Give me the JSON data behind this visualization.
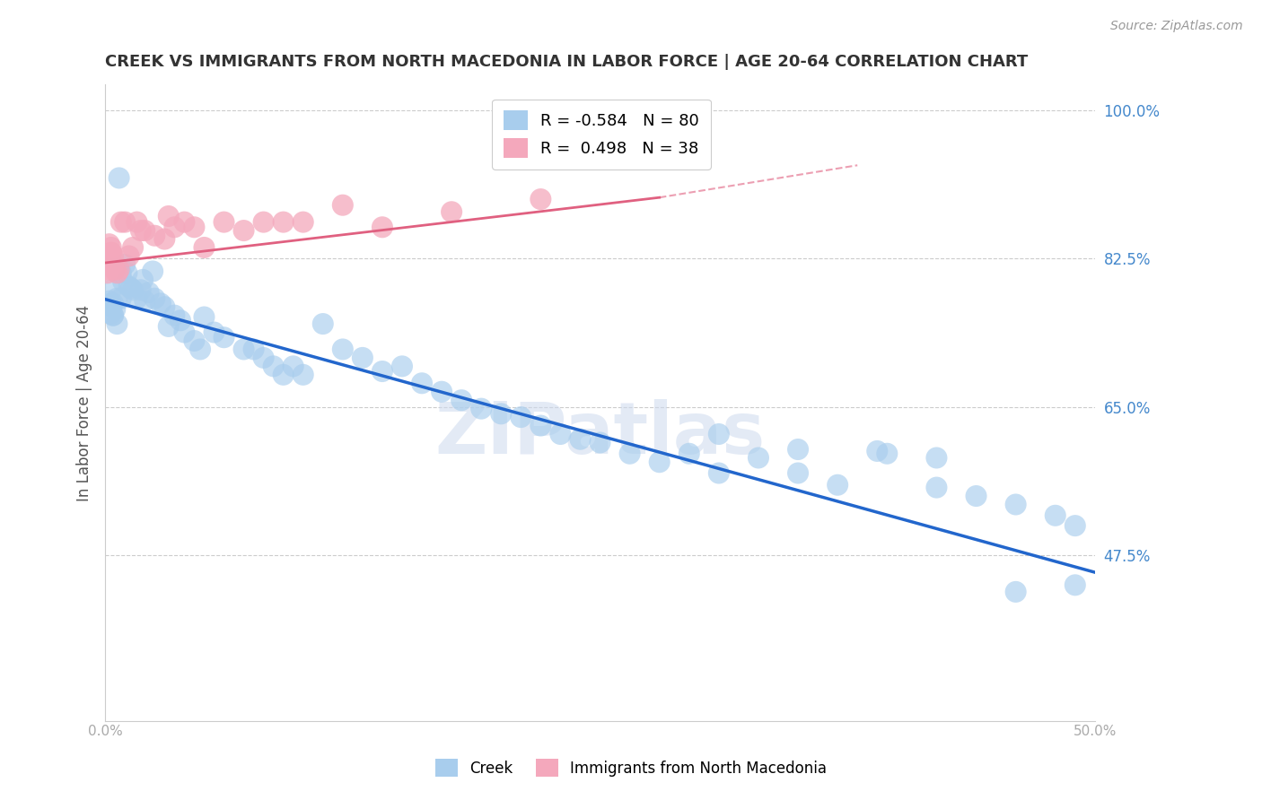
{
  "title": "CREEK VS IMMIGRANTS FROM NORTH MACEDONIA IN LABOR FORCE | AGE 20-64 CORRELATION CHART",
  "source": "Source: ZipAtlas.com",
  "ylabel": "In Labor Force | Age 20-64",
  "xmin": 0.0,
  "xmax": 0.5,
  "ymin": 0.28,
  "ymax": 1.03,
  "yticks": [
    0.475,
    0.65,
    0.825,
    1.0
  ],
  "ytick_labels": [
    "47.5%",
    "65.0%",
    "82.5%",
    "100.0%"
  ],
  "blue_color": "#A8CDED",
  "pink_color": "#F4A8BC",
  "blue_line_color": "#2266CC",
  "pink_line_color": "#E06080",
  "legend_R_blue": "-0.584",
  "legend_N_blue": "80",
  "legend_R_pink": "0.498",
  "legend_N_pink": "38",
  "legend_label_blue": "Creek",
  "legend_label_pink": "Immigrants from North Macedonia",
  "watermark": "ZIPatlas",
  "blue_x": [
    0.002,
    0.003,
    0.004,
    0.002,
    0.003,
    0.005,
    0.004,
    0.003,
    0.006,
    0.004,
    0.003,
    0.007,
    0.006,
    0.008,
    0.009,
    0.01,
    0.012,
    0.008,
    0.011,
    0.014,
    0.016,
    0.018,
    0.013,
    0.02,
    0.022,
    0.019,
    0.025,
    0.024,
    0.03,
    0.028,
    0.035,
    0.032,
    0.038,
    0.04,
    0.045,
    0.048,
    0.05,
    0.055,
    0.06,
    0.07,
    0.075,
    0.08,
    0.085,
    0.09,
    0.095,
    0.1,
    0.11,
    0.12,
    0.13,
    0.14,
    0.15,
    0.16,
    0.17,
    0.18,
    0.19,
    0.2,
    0.21,
    0.22,
    0.23,
    0.24,
    0.25,
    0.265,
    0.28,
    0.295,
    0.31,
    0.33,
    0.35,
    0.37,
    0.395,
    0.42,
    0.44,
    0.46,
    0.48,
    0.49,
    0.31,
    0.35,
    0.39,
    0.42,
    0.46,
    0.49
  ],
  "blue_y": [
    0.77,
    0.76,
    0.758,
    0.775,
    0.772,
    0.765,
    0.758,
    0.77,
    0.748,
    0.772,
    0.788,
    0.92,
    0.778,
    0.808,
    0.798,
    0.818,
    0.792,
    0.778,
    0.808,
    0.788,
    0.778,
    0.788,
    0.79,
    0.775,
    0.785,
    0.8,
    0.778,
    0.81,
    0.768,
    0.772,
    0.758,
    0.745,
    0.752,
    0.738,
    0.728,
    0.718,
    0.756,
    0.738,
    0.732,
    0.718,
    0.718,
    0.708,
    0.698,
    0.688,
    0.698,
    0.688,
    0.748,
    0.718,
    0.708,
    0.692,
    0.698,
    0.678,
    0.668,
    0.658,
    0.648,
    0.642,
    0.638,
    0.628,
    0.618,
    0.612,
    0.608,
    0.595,
    0.585,
    0.595,
    0.572,
    0.59,
    0.572,
    0.558,
    0.595,
    0.555,
    0.545,
    0.535,
    0.522,
    0.51,
    0.618,
    0.6,
    0.598,
    0.59,
    0.432,
    0.44
  ],
  "pink_x": [
    0.002,
    0.003,
    0.002,
    0.001,
    0.002,
    0.001,
    0.003,
    0.002,
    0.004,
    0.003,
    0.002,
    0.005,
    0.006,
    0.004,
    0.007,
    0.008,
    0.01,
    0.012,
    0.014,
    0.016,
    0.018,
    0.02,
    0.025,
    0.03,
    0.032,
    0.035,
    0.04,
    0.045,
    0.05,
    0.06,
    0.07,
    0.08,
    0.09,
    0.1,
    0.12,
    0.14,
    0.175,
    0.22
  ],
  "pink_y": [
    0.828,
    0.832,
    0.822,
    0.818,
    0.812,
    0.808,
    0.832,
    0.822,
    0.818,
    0.838,
    0.842,
    0.812,
    0.808,
    0.828,
    0.812,
    0.868,
    0.868,
    0.828,
    0.838,
    0.868,
    0.858,
    0.858,
    0.852,
    0.848,
    0.875,
    0.862,
    0.868,
    0.862,
    0.838,
    0.868,
    0.858,
    0.868,
    0.868,
    0.868,
    0.888,
    0.862,
    0.88,
    0.895
  ]
}
